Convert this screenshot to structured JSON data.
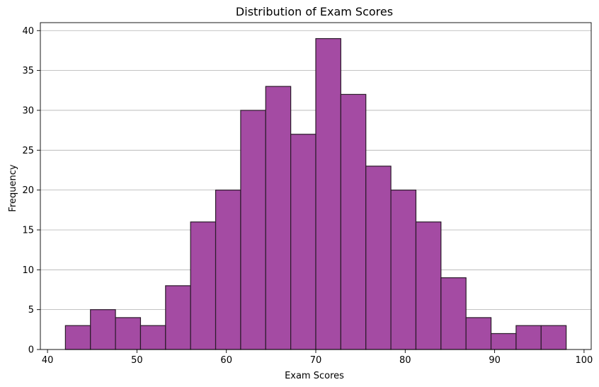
{
  "chart_data": {
    "type": "bar",
    "title": "Distribution of Exam Scores",
    "xlabel": "Exam Scores",
    "ylabel": "Frequency",
    "xlim": [
      39.2,
      100.8
    ],
    "ylim": [
      0,
      41
    ],
    "xticks": [
      40,
      50,
      60,
      70,
      80,
      90,
      100
    ],
    "yticks": [
      0,
      5,
      10,
      15,
      20,
      25,
      30,
      35,
      40
    ],
    "grid": "y",
    "bins": [
      {
        "x0": 42.0,
        "x1": 44.8,
        "count": 3
      },
      {
        "x0": 44.8,
        "x1": 47.6,
        "count": 5
      },
      {
        "x0": 47.6,
        "x1": 50.4,
        "count": 4
      },
      {
        "x0": 50.4,
        "x1": 53.2,
        "count": 3
      },
      {
        "x0": 53.2,
        "x1": 56.0,
        "count": 8
      },
      {
        "x0": 56.0,
        "x1": 58.8,
        "count": 16
      },
      {
        "x0": 58.8,
        "x1": 61.6,
        "count": 20
      },
      {
        "x0": 61.6,
        "x1": 64.4,
        "count": 30
      },
      {
        "x0": 64.4,
        "x1": 67.2,
        "count": 33
      },
      {
        "x0": 67.2,
        "x1": 70.0,
        "count": 27
      },
      {
        "x0": 70.0,
        "x1": 72.8,
        "count": 39
      },
      {
        "x0": 72.8,
        "x1": 75.6,
        "count": 32
      },
      {
        "x0": 75.6,
        "x1": 78.4,
        "count": 23
      },
      {
        "x0": 78.4,
        "x1": 81.2,
        "count": 20
      },
      {
        "x0": 81.2,
        "x1": 84.0,
        "count": 16
      },
      {
        "x0": 84.0,
        "x1": 86.8,
        "count": 9
      },
      {
        "x0": 86.8,
        "x1": 89.6,
        "count": 4
      },
      {
        "x0": 89.6,
        "x1": 92.4,
        "count": 2
      },
      {
        "x0": 92.4,
        "x1": 95.2,
        "count": 3
      },
      {
        "x0": 95.2,
        "x1": 98.0,
        "count": 3
      }
    ],
    "bar_color": "#a44ba3",
    "edge_color": "#2b1a2a",
    "grid_color": "#b0b0b0"
  }
}
